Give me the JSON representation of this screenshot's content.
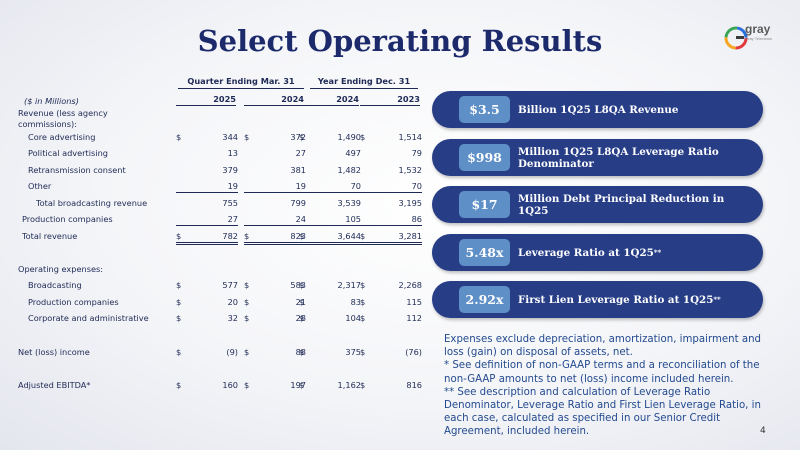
{
  "title": "Select Operating Results",
  "logo": {
    "word": "gray",
    "tagline": "Gray Television"
  },
  "table": {
    "period_headers": [
      "Quarter Ending Mar. 31",
      "Year Ending Dec. 31"
    ],
    "years": [
      "2025",
      "2024",
      "2024",
      "2023"
    ],
    "units_label": "($ in Millions)",
    "revenue_heading": "Revenue (less agency commissions):",
    "rows": [
      {
        "label": "Core advertising",
        "values": [
          "344",
          "372",
          "1,490",
          "1,514"
        ],
        "dollar": true
      },
      {
        "label": "Political advertising",
        "values": [
          "13",
          "27",
          "497",
          "79"
        ]
      },
      {
        "label": "Retransmission consent",
        "values": [
          "379",
          "381",
          "1,482",
          "1,532"
        ]
      },
      {
        "label": "Other",
        "values": [
          "19",
          "19",
          "70",
          "70"
        ]
      },
      {
        "label": "Total broadcasting revenue",
        "values": [
          "755",
          "799",
          "3,539",
          "3,195"
        ]
      },
      {
        "label": "Production companies",
        "values": [
          "27",
          "24",
          "105",
          "86"
        ]
      },
      {
        "label": "Total revenue",
        "values": [
          "782",
          "823",
          "3,644",
          "3,281"
        ],
        "dollar": true
      },
      {
        "label": "Operating expenses:"
      },
      {
        "label": "Broadcasting",
        "values": [
          "577",
          "583",
          "2,317",
          "2,268"
        ],
        "dollar": true
      },
      {
        "label": "Production companies",
        "values": [
          "20",
          "21",
          "83",
          "115"
        ],
        "dollar": true
      },
      {
        "label": "Corporate and administrative",
        "values": [
          "32",
          "28",
          "104",
          "112"
        ],
        "dollar": true
      },
      {
        "label": "Net (loss) income",
        "values": [
          "(9)",
          "88",
          "375",
          "(76)"
        ],
        "dollar": true
      },
      {
        "label": "Adjusted EBITDA*",
        "values": [
          "160",
          "197",
          "1,162",
          "816"
        ],
        "dollar": true
      }
    ],
    "dollar_sign": "$"
  },
  "highlights": [
    {
      "value": "$3.5",
      "text": "Billion 1Q25 L8QA Revenue"
    },
    {
      "value": "$998",
      "text": "Million 1Q25 L8QA Leverage Ratio Denominator"
    },
    {
      "value": "$17",
      "text": "Million Debt Principal Reduction in 1Q25"
    },
    {
      "value": "5.48x",
      "text": "Leverage Ratio at 1Q25",
      "sup": "**"
    },
    {
      "value": "2.92x",
      "text": "First Lien Leverage Ratio at 1Q25",
      "sup": "**"
    }
  ],
  "notes": [
    "Expenses exclude depreciation, amortization, impairment and loss (gain) on disposal of assets, net.",
    "* See definition of non-GAAP terms and a reconciliation of the non-GAAP amounts to net (loss) income included herein.",
    "** See description and calculation of Leverage Ratio Denominator, Leverage Ratio and First Lien Leverage Ratio, in each case, calculated as specified in our Senior Credit Agreement, included herein."
  ],
  "page_number": "4",
  "colors": {
    "badge_bg": "#273e87",
    "value_box": "#5e8fc6",
    "title": "#1c2a6b",
    "notes": "#234a8f"
  }
}
